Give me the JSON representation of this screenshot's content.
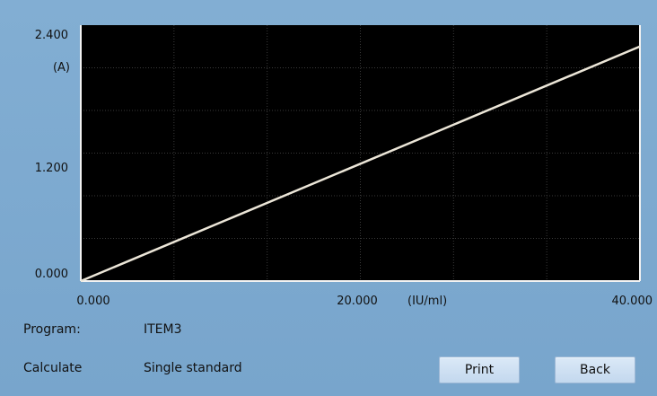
{
  "chart_data": {
    "type": "line",
    "x": [
      0,
      40
    ],
    "y": [
      0,
      2.2
    ],
    "xlim": [
      0,
      40
    ],
    "ylim": [
      0,
      2.4
    ],
    "y_ticks": [
      "2.400",
      "1.200",
      "0.000"
    ],
    "x_ticks": [
      "0.000",
      "20.000",
      "40.000"
    ],
    "ylabel": "(A)",
    "xlabel": "(IU/ml)",
    "grid": true,
    "plot_background": "#000000",
    "line_color": "#ece6d8"
  },
  "info": {
    "program_label": "Program:",
    "program_value": "ITEM3",
    "calculate_label": "Calculate",
    "calculate_value": "Single standard"
  },
  "buttons": {
    "print_label": "Print",
    "back_label": "Back"
  },
  "colors": {
    "background": "#7eaacf",
    "button_face": "#cfe0f2"
  }
}
